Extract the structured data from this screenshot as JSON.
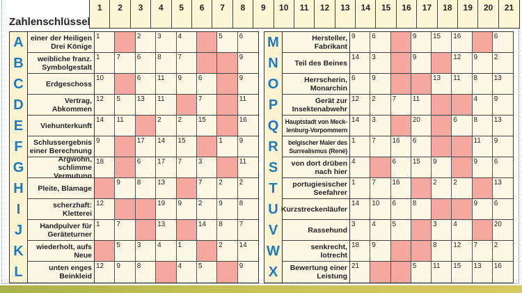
{
  "key": {
    "label": "Zahlenschlüssel:",
    "numbers": [
      "1",
      "2",
      "3",
      "4",
      "5",
      "6",
      "7",
      "8",
      "9",
      "10",
      "11",
      "12",
      "13",
      "14",
      "15",
      "16",
      "17",
      "18",
      "19",
      "20",
      "21"
    ]
  },
  "colors": {
    "letter": "#1b78c2",
    "blocked_cell": "#f5a8a0",
    "cell": "#fdf8e6"
  },
  "left_rows": [
    {
      "letter": "A",
      "clue": "einer der Heiligen Drei Könige",
      "cells": [
        "1",
        null,
        "2",
        "3",
        "4",
        null,
        "5",
        "6"
      ]
    },
    {
      "letter": "B",
      "clue": "weibliche franz. Symbolgestalt",
      "cells": [
        "1",
        "7",
        "6",
        "8",
        "7",
        null,
        null,
        "9"
      ]
    },
    {
      "letter": "C",
      "clue": "Erdgeschoss",
      "cells": [
        "10",
        null,
        "6",
        "11",
        "9",
        "6",
        null,
        "9"
      ]
    },
    {
      "letter": "D",
      "clue": "Vertrag, Abkommen",
      "cells": [
        "12",
        "5",
        "13",
        "11",
        null,
        "7",
        null,
        "11"
      ]
    },
    {
      "letter": "E",
      "clue": "Viehunterkunft",
      "cells": [
        "14",
        "11",
        null,
        "2",
        "2",
        "15",
        null,
        "16"
      ]
    },
    {
      "letter": "F",
      "clue": "Schlussergebnis einer Berechnung",
      "cells": [
        "9",
        null,
        "17",
        "14",
        "15",
        null,
        "1",
        "9"
      ]
    },
    {
      "letter": "G",
      "clue": "Argwohn, schlimme Vermutung",
      "cells": [
        "18",
        null,
        "6",
        "17",
        "7",
        "3",
        null,
        "11"
      ]
    },
    {
      "letter": "H",
      "clue": "Pleite, Blamage",
      "cells": [
        null,
        "9",
        "8",
        "13",
        null,
        "7",
        "2",
        "2"
      ]
    },
    {
      "letter": "I",
      "clue": "scherzhaft: Kletterei",
      "cells": [
        "12",
        null,
        null,
        "19",
        "9",
        "2",
        "9",
        "8"
      ]
    },
    {
      "letter": "J",
      "clue": "Handpulver für Geräteturner",
      "cells": [
        "1",
        "7",
        null,
        "13",
        null,
        "14",
        "8",
        "7"
      ]
    },
    {
      "letter": "K",
      "clue": "wiederholt, aufs Neue",
      "cells": [
        null,
        "5",
        "3",
        "4",
        "1",
        null,
        "2",
        "14"
      ]
    },
    {
      "letter": "L",
      "clue": "unten enges Beinkleid",
      "cells": [
        "12",
        "9",
        "8",
        null,
        "4",
        "5",
        null,
        "9"
      ]
    }
  ],
  "right_rows": [
    {
      "letter": "M",
      "clue": "Hersteller, Fabrikant",
      "cells": [
        "9",
        "6",
        null,
        "9",
        "15",
        "16",
        null,
        "6"
      ]
    },
    {
      "letter": "N",
      "clue": "Teil des Beines",
      "cells": [
        "14",
        "3",
        null,
        "9",
        null,
        "12",
        "9",
        "2"
      ]
    },
    {
      "letter": "O",
      "clue": "Herrscherin, Monarchin",
      "cells": [
        "6",
        "9",
        null,
        null,
        "13",
        "11",
        "8",
        "13"
      ]
    },
    {
      "letter": "P",
      "clue": "Gerät zur Insektenabwehr",
      "cells": [
        "12",
        "2",
        "7",
        "11",
        null,
        null,
        "4",
        "9"
      ]
    },
    {
      "letter": "Q",
      "clue": "Hauptstadt von Meck-lenburg-Vorpommern",
      "cells": [
        "14",
        "3",
        null,
        "20",
        null,
        "6",
        "8",
        "13"
      ]
    },
    {
      "letter": "R",
      "clue": "belgischer Maler des Surrealismus (René)",
      "cells": [
        "1",
        "7",
        "16",
        "6",
        null,
        null,
        "11",
        "9"
      ]
    },
    {
      "letter": "S",
      "clue": "von dort drüben nach hier",
      "cells": [
        "4",
        null,
        "6",
        "15",
        "9",
        null,
        "9",
        "6"
      ]
    },
    {
      "letter": "T",
      "clue": "portugiesischer Seefahrer",
      "cells": [
        "1",
        "7",
        "16",
        null,
        "2",
        "2",
        null,
        "13"
      ]
    },
    {
      "letter": "U",
      "clue": "Kurzstreckenläufer",
      "cells": [
        "14",
        "10",
        "6",
        "8",
        null,
        null,
        "9",
        "6"
      ]
    },
    {
      "letter": "V",
      "clue": "Rassehund",
      "cells": [
        "3",
        "4",
        "5",
        null,
        "3",
        "4",
        null,
        "20"
      ]
    },
    {
      "letter": "W",
      "clue": "senkrecht, lotrecht",
      "cells": [
        "18",
        "9",
        null,
        null,
        "8",
        "12",
        "7",
        "2"
      ]
    },
    {
      "letter": "X",
      "clue": "Bewertung einer Leistung",
      "cells": [
        "21",
        null,
        null,
        "5",
        "11",
        "15",
        "13",
        "16"
      ]
    }
  ]
}
